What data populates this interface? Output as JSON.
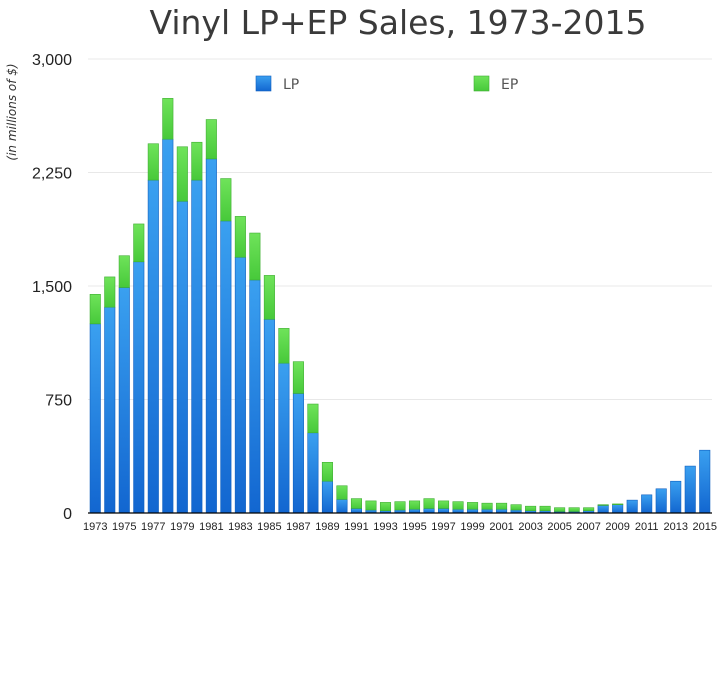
{
  "chart_data": {
    "type": "bar",
    "stacked": true,
    "title": "Vinyl LP+EP Sales, 1973-2015",
    "ylabel": "(in millions of $)",
    "xlabel": "",
    "ylim": [
      0,
      3000
    ],
    "yticks": [
      0,
      750,
      1500,
      2250,
      3000
    ],
    "ytick_labels": [
      "0",
      "750",
      "1,500",
      "2,250",
      "3,000"
    ],
    "grid": true,
    "legend_position": "top",
    "categories": [
      "1973",
      "1974",
      "1975",
      "1976",
      "1977",
      "1978",
      "1979",
      "1980",
      "1981",
      "1982",
      "1983",
      "1984",
      "1985",
      "1986",
      "1987",
      "1988",
      "1989",
      "1990",
      "1991",
      "1992",
      "1993",
      "1994",
      "1995",
      "1996",
      "1997",
      "1998",
      "1999",
      "2000",
      "2001",
      "2002",
      "2003",
      "2004",
      "2005",
      "2006",
      "2007",
      "2008",
      "2009",
      "2010",
      "2011",
      "2012",
      "2013",
      "2014",
      "2015"
    ],
    "xtick_labels": [
      "1973",
      "1975",
      "1977",
      "1979",
      "1981",
      "1983",
      "1985",
      "1987",
      "1989",
      "1991",
      "1993",
      "1995",
      "1997",
      "1999",
      "2001",
      "2003",
      "2005",
      "2007",
      "2009",
      "2011",
      "2013",
      "2015"
    ],
    "series": [
      {
        "name": "LP",
        "color": "#1f7fe0",
        "values": [
          1250,
          1360,
          1490,
          1660,
          2200,
          2470,
          2060,
          2200,
          2340,
          1930,
          1690,
          1540,
          1280,
          990,
          790,
          530,
          210,
          90,
          30,
          20,
          15,
          20,
          25,
          30,
          30,
          25,
          25,
          25,
          25,
          20,
          15,
          15,
          10,
          10,
          15,
          50,
          55,
          85,
          120,
          160,
          210,
          310,
          415
        ]
      },
      {
        "name": "EP",
        "color": "#55d645",
        "values": [
          195,
          200,
          210,
          250,
          240,
          270,
          360,
          250,
          260,
          280,
          270,
          310,
          290,
          230,
          210,
          190,
          125,
          90,
          65,
          60,
          55,
          55,
          55,
          65,
          50,
          50,
          45,
          40,
          40,
          35,
          30,
          30,
          25,
          25,
          20,
          5,
          5,
          0,
          0,
          0,
          0,
          0,
          0
        ]
      }
    ]
  }
}
